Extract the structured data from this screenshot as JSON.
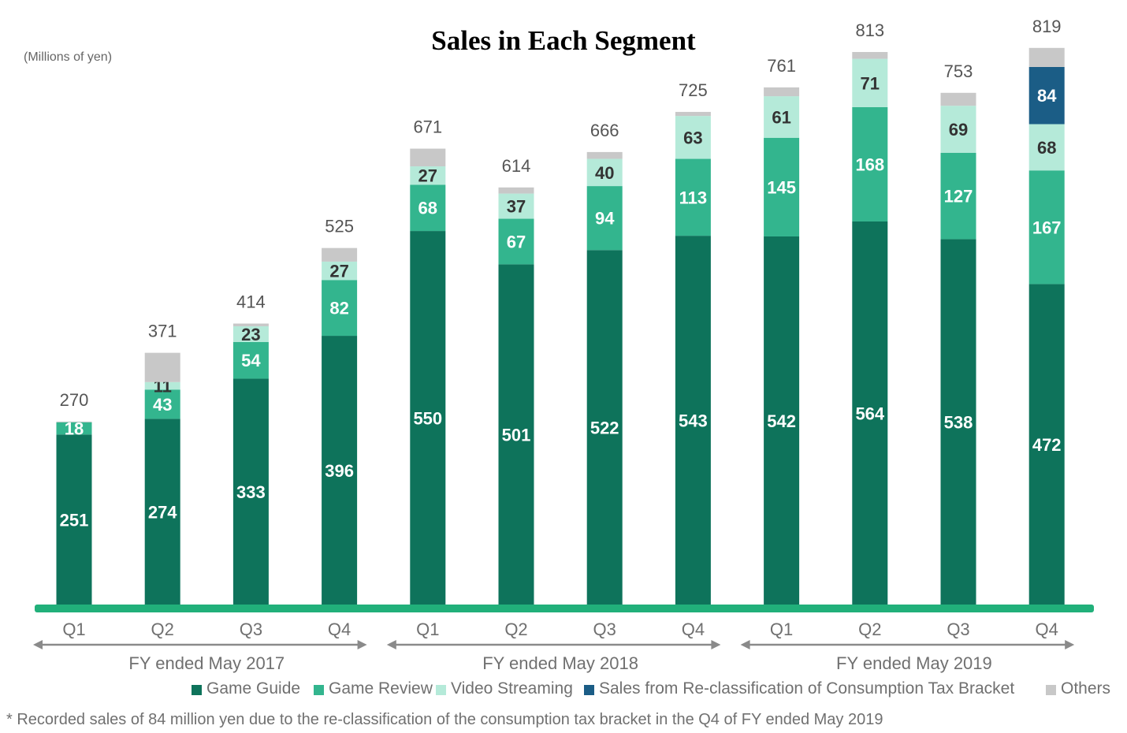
{
  "chart_data": {
    "type": "bar",
    "stacked": true,
    "title": "Sales in Each Segment",
    "unit_label": "(Millions of yen)",
    "categories": [
      "Q1",
      "Q2",
      "Q3",
      "Q4",
      "Q1",
      "Q2",
      "Q3",
      "Q4",
      "Q1",
      "Q2",
      "Q3",
      "Q4"
    ],
    "groups": [
      {
        "label": "FY ended May 2017",
        "span": 4
      },
      {
        "label": "FY ended May 2018",
        "span": 4
      },
      {
        "label": "FY ended May 2019",
        "span": 4
      }
    ],
    "totals": [
      270,
      371,
      414,
      525,
      671,
      614,
      666,
      725,
      761,
      813,
      753,
      819
    ],
    "series": [
      {
        "name": "Game Guide",
        "color": "#0e735b",
        "values": [
          251,
          274,
          333,
          396,
          550,
          501,
          522,
          543,
          542,
          564,
          538,
          472
        ]
      },
      {
        "name": "Game Review",
        "color": "#33b58e",
        "values": [
          18,
          43,
          54,
          82,
          68,
          67,
          94,
          113,
          145,
          168,
          127,
          167
        ]
      },
      {
        "name": "Video Streaming",
        "color": "#b5ead9",
        "values": [
          0,
          11,
          23,
          27,
          27,
          37,
          40,
          63,
          61,
          71,
          69,
          68
        ]
      },
      {
        "name": "Sales from Re-classification of Consumption Tax Bracket",
        "color": "#1b5d86",
        "values": [
          0,
          0,
          0,
          0,
          0,
          0,
          0,
          0,
          0,
          0,
          0,
          84
        ]
      },
      {
        "name": "Others",
        "color": "#c8c8c8",
        "values": [
          1,
          43,
          4,
          20,
          26,
          9,
          10,
          6,
          13,
          10,
          19,
          28
        ]
      }
    ],
    "data_labels": [
      [
        "251",
        "18",
        "",
        "",
        ""
      ],
      [
        "274",
        "43",
        "11",
        "",
        ""
      ],
      [
        "333",
        "54",
        "23",
        "",
        ""
      ],
      [
        "396",
        "82",
        "27",
        "",
        ""
      ],
      [
        "550",
        "68",
        "27",
        "",
        ""
      ],
      [
        "501",
        "67",
        "37",
        "",
        ""
      ],
      [
        "522",
        "94",
        "40",
        "",
        ""
      ],
      [
        "543",
        "113",
        "63",
        "",
        ""
      ],
      [
        "542",
        "145",
        "61",
        "",
        ""
      ],
      [
        "564",
        "168",
        "71",
        "",
        ""
      ],
      [
        "538",
        "127",
        "69",
        "",
        ""
      ],
      [
        "472",
        "167",
        "68",
        "84",
        ""
      ]
    ],
    "ylim": [
      0,
      850
    ],
    "grid": false,
    "legend_position": "bottom",
    "footnote": "* Recorded sales of 84 million yen due to the re-classification of the consumption tax bracket in the Q4 of FY ended May 2019",
    "colors": {
      "baseline": "#21b07a",
      "total_label": "#555555",
      "tick_label": "#707070",
      "arrow": "#8a8a8a"
    }
  }
}
